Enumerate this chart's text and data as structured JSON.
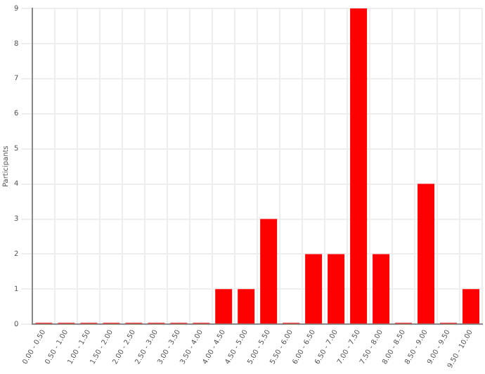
{
  "chart_data": {
    "type": "bar",
    "ylabel": "Participants",
    "categories": [
      "0.00 - 0.50",
      "0.50 - 1.00",
      "1.00 - 1.50",
      "1.50 - 2.00",
      "2.00 - 2.50",
      "2.50 - 3.00",
      "3.00 - 3.50",
      "3.50 - 4.00",
      "4.00 - 4.50",
      "4.50 - 5.00",
      "5.00 - 5.50",
      "5.50 - 6.00",
      "6.00 - 6.50",
      "6.50 - 7.00",
      "7.00 - 7.50",
      "7.50 - 8.00",
      "8.00 - 8.50",
      "8.50 - 9.00",
      "9.00 - 9.50",
      "9.50 - 10.00"
    ],
    "values": [
      0,
      0,
      0,
      0,
      0,
      0,
      0,
      0,
      1,
      1,
      3,
      0,
      2,
      2,
      9,
      2,
      0,
      4,
      0,
      1
    ],
    "color": "#ff0000",
    "ylim": [
      0,
      9
    ],
    "yticks": [
      0,
      1,
      2,
      3,
      4,
      5,
      6,
      7,
      8,
      9
    ],
    "grid": true
  }
}
